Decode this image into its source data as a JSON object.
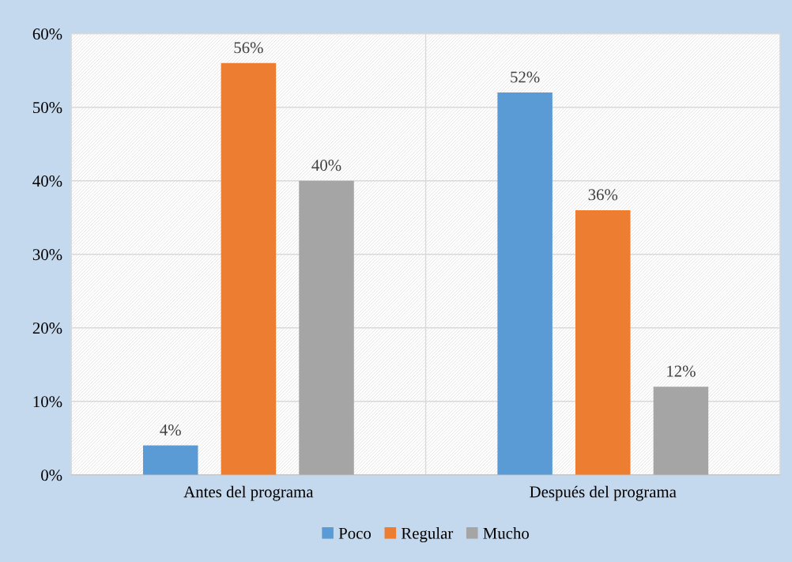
{
  "chart_data": {
    "type": "bar",
    "categories": [
      "Antes del programa",
      "Después del programa"
    ],
    "series": [
      {
        "name": "Poco",
        "color": "#5b9bd5",
        "values": [
          4,
          52
        ],
        "value_labels": [
          "4%",
          "52%"
        ]
      },
      {
        "name": "Regular",
        "color": "#ed7d31",
        "values": [
          56,
          36
        ],
        "value_labels": [
          "56%",
          "36%"
        ]
      },
      {
        "name": "Mucho",
        "color": "#a5a5a5",
        "values": [
          40,
          12
        ],
        "value_labels": [
          "40%",
          "12%"
        ]
      }
    ],
    "ylim": [
      0,
      60
    ],
    "yticks": [
      {
        "value": 0,
        "label": "0%"
      },
      {
        "value": 10,
        "label": "10%"
      },
      {
        "value": 20,
        "label": "20%"
      },
      {
        "value": 30,
        "label": "30%"
      },
      {
        "value": 40,
        "label": "40%"
      },
      {
        "value": 50,
        "label": "50%"
      },
      {
        "value": 60,
        "label": "60%"
      }
    ],
    "grid": true,
    "legend": "bottom"
  }
}
